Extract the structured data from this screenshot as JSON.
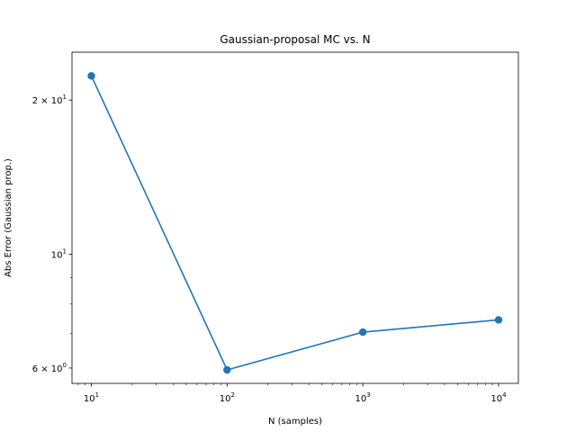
{
  "chart_data": {
    "type": "line",
    "title": "Gaussian-proposal MC vs. N",
    "xlabel": "N (samples)",
    "ylabel": "Abs Error (Gaussian prop.)",
    "xscale": "log",
    "yscale": "log",
    "xlim": [
      7.2,
      14000
    ],
    "ylim": [
      5.6,
      24.8
    ],
    "grid": false,
    "marker": "circle",
    "series": [
      {
        "x": [
          10,
          100,
          1000,
          10000
        ],
        "y": [
          22.3,
          5.95,
          7.05,
          7.45
        ],
        "color": "#1f77b4"
      }
    ],
    "x_ticks": [
      {
        "value": 10,
        "base": "10",
        "exp": "1"
      },
      {
        "value": 100,
        "base": "10",
        "exp": "2"
      },
      {
        "value": 1000,
        "base": "10",
        "exp": "3"
      },
      {
        "value": 10000,
        "base": "10",
        "exp": "4"
      }
    ],
    "y_ticks": [
      {
        "value": 6,
        "base": "6 × 10",
        "exp": "0"
      },
      {
        "value": 10,
        "base": "10",
        "exp": "1"
      },
      {
        "value": 20,
        "base": "2 × 10",
        "exp": "1"
      }
    ]
  }
}
